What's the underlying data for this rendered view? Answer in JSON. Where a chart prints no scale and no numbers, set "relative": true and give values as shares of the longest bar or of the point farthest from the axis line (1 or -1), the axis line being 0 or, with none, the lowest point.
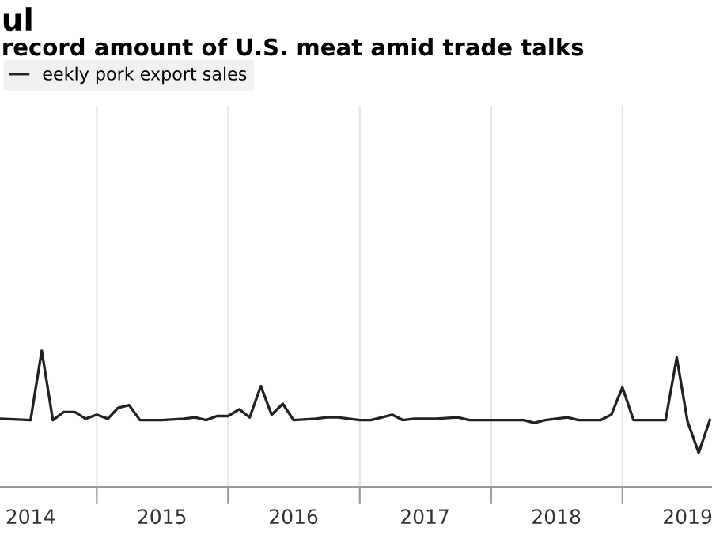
{
  "chart_data": {
    "type": "line",
    "title": "ul",
    "subtitle": "record amount of U.S. meat amid trade talks",
    "relative": true,
    "x": [
      "2014-04-08",
      "2014-07",
      "2014-08",
      "2014-09",
      "2014-10",
      "2014-11",
      "2014-12",
      "2015-01",
      "2015-02",
      "2015-03",
      "2015-04",
      "2015-05",
      "2015-07",
      "2015-09",
      "2015-10",
      "2015-11",
      "2015-12",
      "2016-01",
      "2016-02",
      "2016-03",
      "2016-04",
      "2016-05",
      "2016-06",
      "2016-07",
      "2016-09",
      "2016-10",
      "2016-11",
      "2017-01",
      "2017-02",
      "2017-04",
      "2017-05",
      "2017-06",
      "2017-08",
      "2017-10",
      "2017-11",
      "2018-03",
      "2018-04",
      "2018-05",
      "2018-06",
      "2018-08",
      "2018-09",
      "2018-11",
      "2018-12",
      "2019-01",
      "2019-02",
      "2019-04",
      "2019-05",
      "2019-06",
      "2019-07",
      "2019-08",
      "2019-09"
    ],
    "series": [
      {
        "name": "eekly pork export sales",
        "color": "#222222",
        "values": [
          0.5,
          0.49,
          1.0,
          0.49,
          0.55,
          0.55,
          0.5,
          0.53,
          0.5,
          0.58,
          0.6,
          0.49,
          0.49,
          0.5,
          0.51,
          0.49,
          0.52,
          0.52,
          0.57,
          0.51,
          0.74,
          0.53,
          0.61,
          0.49,
          0.5,
          0.51,
          0.51,
          0.49,
          0.49,
          0.53,
          0.49,
          0.5,
          0.5,
          0.51,
          0.49,
          0.49,
          0.49,
          0.47,
          0.49,
          0.51,
          0.49,
          0.49,
          0.53,
          0.73,
          0.49,
          0.49,
          0.49,
          0.95,
          0.48,
          0.25,
          0.49
        ]
      }
    ],
    "xlim": [
      "2014-04-07",
      "2019-09-07"
    ],
    "xticks": [
      {
        "value": "2015-01-01",
        "label": null
      },
      {
        "value": "2016-01-01",
        "label": null
      },
      {
        "value": "2017-01-01",
        "label": null
      },
      {
        "value": "2018-01-01",
        "label": null
      },
      {
        "value": "2019-01-01",
        "label": null
      },
      {
        "value": "2014-07-01",
        "label": "2014"
      },
      {
        "value": "2015-07-01",
        "label": "2015"
      },
      {
        "value": "2016-07-01",
        "label": "2016"
      },
      {
        "value": "2017-07-01",
        "label": "2017"
      },
      {
        "value": "2018-07-01",
        "label": "2018"
      },
      {
        "value": "2019-07-01",
        "label": "2019"
      }
    ],
    "grid": "x",
    "legend": "top left",
    "marker": "none",
    "line_style": "solid"
  }
}
